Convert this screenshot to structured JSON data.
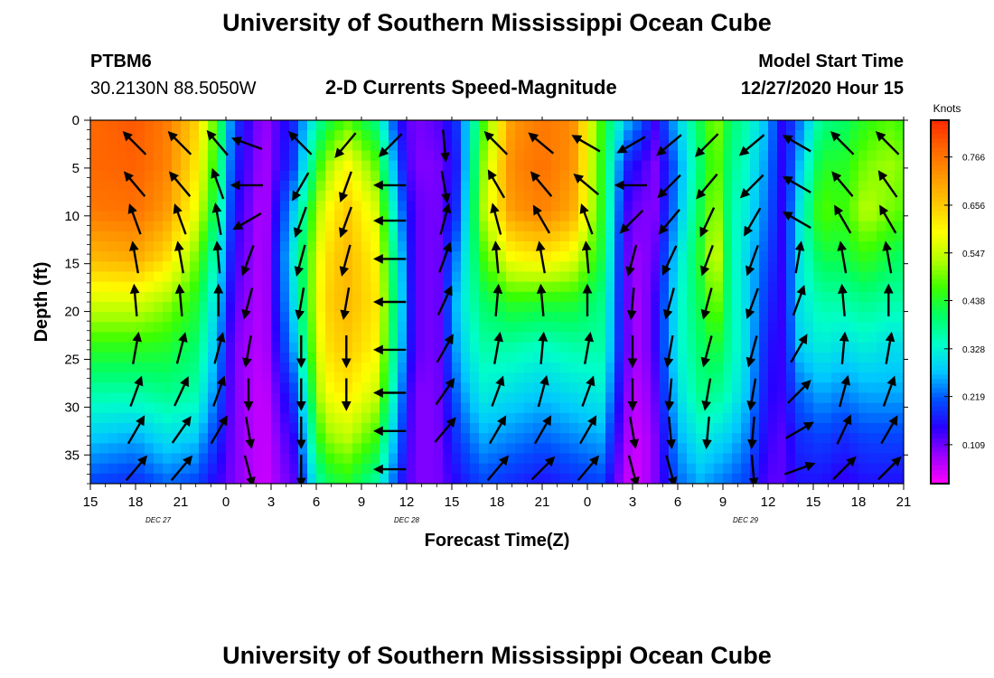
{
  "page": {
    "title_top": "University of Southern Mississippi Ocean Cube",
    "title_bottom": "University of Southern Mississippi Ocean Cube",
    "station_id": "PTBM6",
    "coordinates": "30.2130N 88.5050W",
    "model_start_label": "Model Start Time",
    "model_start_value": "12/27/2020 Hour 15"
  },
  "chart_data": {
    "type": "heatmap",
    "title": "2-D Currents Speed-Magnitude",
    "xlabel": "Forecast Time(Z)",
    "ylabel": "Depth (ft)",
    "x_range": [
      0,
      54
    ],
    "y_range": [
      0,
      38
    ],
    "x_tick_labels": [
      "15",
      "18",
      "21",
      "0",
      "3",
      "6",
      "9",
      "12",
      "15",
      "18",
      "21",
      "0",
      "3",
      "6",
      "9",
      "12",
      "15",
      "18",
      "21"
    ],
    "y_ticks": [
      0,
      5,
      10,
      15,
      20,
      25,
      30,
      35
    ],
    "date_labels": [
      {
        "text": "DEC  27",
        "x": 4.5
      },
      {
        "text": "DEC  28",
        "x": 21
      },
      {
        "text": "DEC  29",
        "x": 43.5
      }
    ],
    "colorbar": {
      "unit_label": "Knots",
      "tick_values": [
        "0.766",
        "0.656",
        "0.547",
        "0.438",
        "0.328",
        "0.219",
        "0.109"
      ],
      "range": [
        0.02,
        0.85
      ],
      "colors": [
        "#ff00ff",
        "#9b00ff",
        "#2800ff",
        "#0050ff",
        "#00c8ff",
        "#00ffc8",
        "#00ff64",
        "#3cff00",
        "#b4ff00",
        "#ffff00",
        "#ffc800",
        "#ff9600",
        "#ff6400",
        "#ff2800"
      ]
    },
    "speed_columns": [
      {
        "t": 0,
        "profile": [
          0.78,
          0.78,
          0.76,
          0.68,
          0.56,
          0.45,
          0.36,
          0.28,
          0.2
        ]
      },
      {
        "t": 3,
        "profile": [
          0.8,
          0.79,
          0.77,
          0.7,
          0.56,
          0.45,
          0.36,
          0.26,
          0.18
        ]
      },
      {
        "t": 5,
        "profile": [
          0.76,
          0.75,
          0.72,
          0.64,
          0.52,
          0.44,
          0.38,
          0.3,
          0.22
        ]
      },
      {
        "t": 7,
        "profile": [
          0.65,
          0.62,
          0.58,
          0.5,
          0.44,
          0.4,
          0.36,
          0.28,
          0.2
        ]
      },
      {
        "t": 8.5,
        "profile": [
          0.45,
          0.42,
          0.38,
          0.32,
          0.28,
          0.25,
          0.22,
          0.18,
          0.14
        ]
      },
      {
        "t": 9.5,
        "profile": [
          0.2,
          0.18,
          0.16,
          0.14,
          0.12,
          0.1,
          0.1,
          0.1,
          0.1
        ]
      },
      {
        "t": 11.5,
        "profile": [
          0.08,
          0.07,
          0.06,
          0.06,
          0.06,
          0.06,
          0.05,
          0.05,
          0.05
        ]
      },
      {
        "t": 13.5,
        "profile": [
          0.18,
          0.2,
          0.28,
          0.32,
          0.3,
          0.26,
          0.2,
          0.15,
          0.12
        ]
      },
      {
        "t": 15.5,
        "profile": [
          0.4,
          0.5,
          0.58,
          0.62,
          0.64,
          0.62,
          0.58,
          0.5,
          0.4
        ]
      },
      {
        "t": 17,
        "profile": [
          0.48,
          0.6,
          0.66,
          0.68,
          0.68,
          0.66,
          0.62,
          0.54,
          0.44
        ]
      },
      {
        "t": 19,
        "profile": [
          0.38,
          0.48,
          0.56,
          0.6,
          0.62,
          0.6,
          0.55,
          0.46,
          0.36
        ]
      },
      {
        "t": 20.5,
        "profile": [
          0.16,
          0.2,
          0.25,
          0.3,
          0.32,
          0.3,
          0.26,
          0.22,
          0.18
        ]
      },
      {
        "t": 21.5,
        "profile": [
          0.1,
          0.1,
          0.12,
          0.12,
          0.12,
          0.12,
          0.1,
          0.1,
          0.1
        ]
      },
      {
        "t": 23,
        "profile": [
          0.12,
          0.1,
          0.1,
          0.1,
          0.1,
          0.1,
          0.1,
          0.1,
          0.1
        ]
      },
      {
        "t": 24.5,
        "profile": [
          0.2,
          0.18,
          0.2,
          0.26,
          0.3,
          0.28,
          0.24,
          0.2,
          0.16
        ]
      },
      {
        "t": 26,
        "profile": [
          0.45,
          0.5,
          0.52,
          0.46,
          0.4,
          0.36,
          0.32,
          0.26,
          0.2
        ]
      },
      {
        "t": 28,
        "profile": [
          0.72,
          0.74,
          0.72,
          0.6,
          0.45,
          0.36,
          0.3,
          0.24,
          0.18
        ]
      },
      {
        "t": 30,
        "profile": [
          0.76,
          0.77,
          0.75,
          0.62,
          0.44,
          0.34,
          0.28,
          0.22,
          0.16
        ]
      },
      {
        "t": 32,
        "profile": [
          0.74,
          0.73,
          0.7,
          0.58,
          0.44,
          0.36,
          0.3,
          0.24,
          0.18
        ]
      },
      {
        "t": 34,
        "profile": [
          0.45,
          0.44,
          0.44,
          0.42,
          0.38,
          0.36,
          0.32,
          0.26,
          0.2
        ]
      },
      {
        "t": 35.5,
        "profile": [
          0.28,
          0.18,
          0.14,
          0.12,
          0.12,
          0.12,
          0.1,
          0.08,
          0.06
        ]
      },
      {
        "t": 36.5,
        "profile": [
          0.22,
          0.14,
          0.1,
          0.08,
          0.07,
          0.07,
          0.06,
          0.05,
          0.05
        ]
      },
      {
        "t": 37.5,
        "profile": [
          0.14,
          0.1,
          0.1,
          0.12,
          0.14,
          0.14,
          0.12,
          0.1,
          0.1
        ]
      },
      {
        "t": 39,
        "profile": [
          0.28,
          0.24,
          0.26,
          0.3,
          0.32,
          0.32,
          0.3,
          0.26,
          0.22
        ]
      },
      {
        "t": 40.5,
        "profile": [
          0.42,
          0.4,
          0.42,
          0.44,
          0.42,
          0.4,
          0.38,
          0.32,
          0.26
        ]
      },
      {
        "t": 41.5,
        "profile": [
          0.52,
          0.5,
          0.54,
          0.58,
          0.52,
          0.44,
          0.38,
          0.3,
          0.24
        ]
      },
      {
        "t": 42.5,
        "profile": [
          0.4,
          0.38,
          0.36,
          0.36,
          0.36,
          0.36,
          0.34,
          0.28,
          0.22
        ]
      },
      {
        "t": 43.5,
        "profile": [
          0.36,
          0.34,
          0.32,
          0.3,
          0.3,
          0.3,
          0.28,
          0.24,
          0.2
        ]
      },
      {
        "t": 45,
        "profile": [
          0.26,
          0.24,
          0.22,
          0.2,
          0.18,
          0.16,
          0.15,
          0.14,
          0.12
        ]
      },
      {
        "t": 46,
        "profile": [
          0.14,
          0.14,
          0.14,
          0.14,
          0.14,
          0.14,
          0.14,
          0.12,
          0.12
        ]
      },
      {
        "t": 47,
        "profile": [
          0.22,
          0.26,
          0.3,
          0.3,
          0.3,
          0.28,
          0.22,
          0.18,
          0.16
        ]
      },
      {
        "t": 48.5,
        "profile": [
          0.38,
          0.44,
          0.48,
          0.42,
          0.36,
          0.32,
          0.26,
          0.2,
          0.16
        ]
      },
      {
        "t": 50,
        "profile": [
          0.4,
          0.44,
          0.46,
          0.42,
          0.36,
          0.3,
          0.24,
          0.18,
          0.14
        ]
      },
      {
        "t": 51.5,
        "profile": [
          0.45,
          0.5,
          0.54,
          0.46,
          0.38,
          0.32,
          0.26,
          0.2,
          0.16
        ]
      },
      {
        "t": 53,
        "profile": [
          0.48,
          0.52,
          0.5,
          0.42,
          0.36,
          0.3,
          0.26,
          0.2,
          0.16
        ]
      },
      {
        "t": 54,
        "profile": [
          0.46,
          0.5,
          0.48,
          0.4,
          0.36,
          0.3,
          0.26,
          0.2,
          0.16
        ]
      }
    ],
    "vector_columns": [
      {
        "t": 3,
        "dir": [
          315,
          320,
          340,
          350,
          355,
          10,
          20,
          30,
          40
        ]
      },
      {
        "t": 6,
        "dir": [
          315,
          320,
          340,
          350,
          355,
          15,
          25,
          35,
          40
        ]
      },
      {
        "t": 8.5,
        "dir": [
          320,
          340,
          350,
          355,
          0,
          15,
          20,
          30
        ]
      },
      {
        "t": 10.5,
        "dir": [
          290,
          270,
          240,
          200,
          195,
          190,
          180,
          170,
          165
        ]
      },
      {
        "t": 14,
        "dir": [
          315,
          210,
          200,
          195,
          190,
          180,
          180,
          180,
          180
        ]
      },
      {
        "t": 17,
        "dir": [
          220,
          200,
          200,
          195,
          190,
          180,
          180
        ]
      },
      {
        "t": 20,
        "dir": [
          225,
          270,
          270,
          270,
          270,
          270,
          270,
          270,
          270
        ]
      },
      {
        "t": 23.5,
        "dir": [
          175,
          170,
          15,
          20,
          25,
          30,
          35,
          40
        ]
      },
      {
        "t": 27,
        "dir": [
          315,
          330,
          345,
          355,
          5,
          10,
          20,
          30,
          40
        ]
      },
      {
        "t": 30,
        "dir": [
          310,
          320,
          330,
          350,
          355,
          5,
          15,
          30,
          45
        ]
      },
      {
        "t": 33,
        "dir": [
          300,
          310,
          340,
          355,
          0,
          10,
          20,
          30,
          40
        ]
      },
      {
        "t": 36,
        "dir": [
          240,
          270,
          225,
          195,
          185,
          180,
          180,
          170,
          165
        ]
      },
      {
        "t": 38.5,
        "dir": [
          230,
          225,
          220,
          205,
          195,
          190,
          185,
          175,
          165
        ]
      },
      {
        "t": 41,
        "dir": [
          225,
          220,
          205,
          200,
          195,
          195,
          190,
          185
        ]
      },
      {
        "t": 44,
        "dir": [
          230,
          225,
          210,
          200,
          200,
          195,
          190,
          185,
          175
        ]
      },
      {
        "t": 47,
        "dir": [
          300,
          300,
          300,
          10,
          20,
          30,
          45,
          60,
          70
        ]
      },
      {
        "t": 50,
        "dir": [
          315,
          320,
          330,
          350,
          355,
          5,
          15,
          25,
          45
        ]
      },
      {
        "t": 53,
        "dir": [
          315,
          325,
          330,
          350,
          0,
          10,
          20,
          30,
          45
        ]
      }
    ]
  }
}
